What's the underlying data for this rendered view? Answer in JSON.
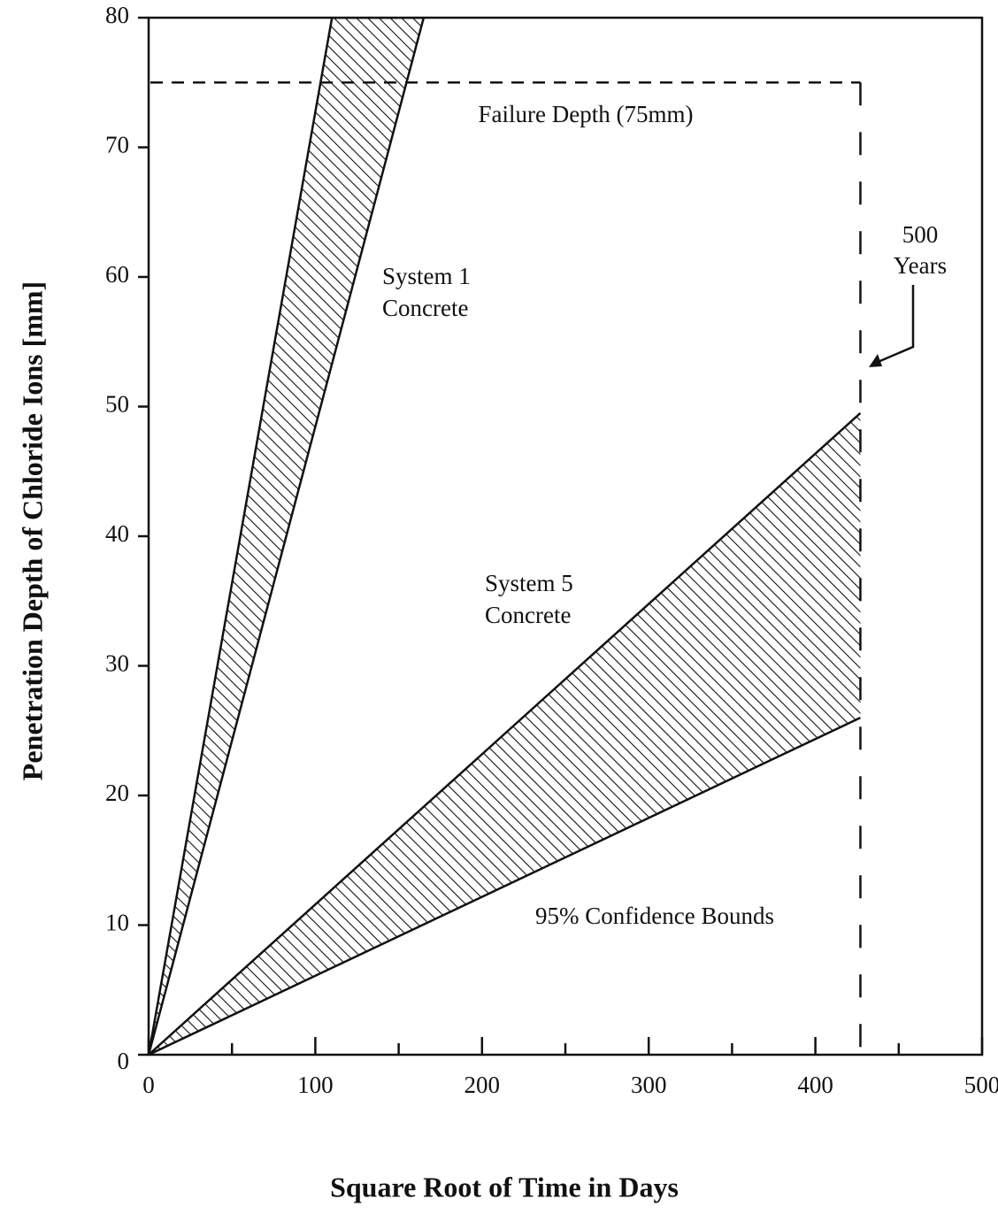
{
  "chart_data": {
    "type": "band",
    "x_label": "Square Root of Time in Days",
    "y_label": "Penetration Depth of Chloride Ions [mm]",
    "xlim": [
      0,
      500
    ],
    "ylim": [
      0,
      80
    ],
    "xticks": [
      0,
      100,
      200,
      300,
      400,
      500
    ],
    "xminorticks": [
      50,
      150,
      250,
      350,
      450
    ],
    "yticks": [
      0,
      10,
      20,
      30,
      40,
      50,
      60,
      70,
      80
    ],
    "series": [
      {
        "label": [
          "System 1",
          "Concrete"
        ],
        "x": [
          0,
          110,
          165
        ],
        "upper": [
          0,
          80,
          80
        ],
        "lower": [
          0,
          53.3,
          80
        ]
      },
      {
        "label": [
          "System 5",
          "Concrete"
        ],
        "x": [
          0,
          427
        ],
        "upper": [
          0,
          49.5
        ],
        "lower": [
          0,
          26
        ]
      }
    ],
    "failure": {
      "text": "Failure Depth (75mm)",
      "y": 75,
      "x": 427,
      "label": [
        "500",
        "Years"
      ]
    },
    "note": "95% Confidence Bounds"
  }
}
